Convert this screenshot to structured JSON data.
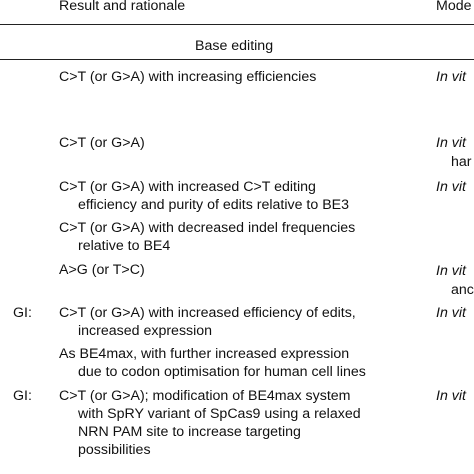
{
  "header": {
    "col_result": "Result and rationale",
    "col_model": "Mode"
  },
  "section": {
    "title": "Base editing"
  },
  "rows": [
    {
      "code": "",
      "rationale": [
        "C>T (or G>A) with increasing efficiencies"
      ],
      "model": [
        "In vit"
      ]
    },
    {
      "code": "",
      "rationale": [
        "C>T (or G>A)"
      ],
      "model": [
        "In vit",
        "har"
      ]
    },
    {
      "code": "",
      "rationale": [
        "C>T (or G>A) with increased C>T editing",
        "efficiency and purity of edits relative to BE3"
      ],
      "model": [
        "In vit"
      ]
    },
    {
      "code": "",
      "rationale": [
        "C>T (or G>A) with decreased indel frequencies",
        "relative to BE4"
      ],
      "model": []
    },
    {
      "code": "",
      "rationale": [
        "A>G (or T>C)"
      ],
      "model": [
        "In vit",
        "anc"
      ]
    },
    {
      "code": "GI:",
      "rationale": [
        "C>T (or G>A) with increased efficiency of edits,",
        "increased expression"
      ],
      "model": [
        "In vit"
      ]
    },
    {
      "code": "",
      "rationale": [
        "As BE4max, with further increased expression",
        "due to codon optimisation for human cell lines"
      ],
      "model": []
    },
    {
      "code": "GI:",
      "rationale": [
        "C>T (or G>A); modification of BE4max system",
        "with SpRY variant of SpCas9 using a relaxed",
        "NRN PAM site to increase targeting",
        "possibilities"
      ],
      "model": [
        "In vit"
      ]
    }
  ]
}
